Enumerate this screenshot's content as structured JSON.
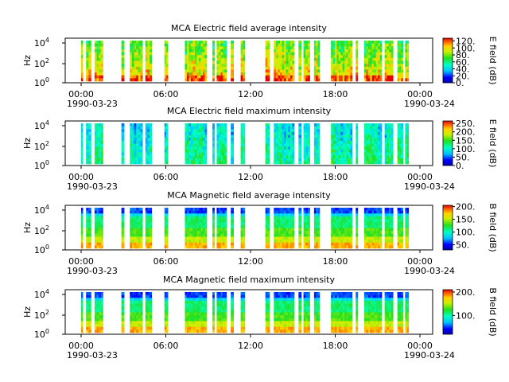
{
  "figure": {
    "x_tick_labels": [
      "00:00",
      "06:00",
      "12:00",
      "18:00",
      "00:00"
    ],
    "date_start": "1990-03-23",
    "date_end": "1990-03-24",
    "ylabel": "Hz"
  },
  "chart_data": [
    {
      "type": "heatmap",
      "title": "MCA  Electric field average intensity",
      "ylabel": "Hz",
      "y_ticks": [
        "10^0",
        "10^2",
        "10^4"
      ],
      "ylim_log10": [
        0,
        4.5
      ],
      "colorbar_label": "E field (dB)",
      "colorbar_ticks": [
        "0.",
        "20.",
        "40.",
        "60.",
        "80.",
        "100.",
        "120."
      ],
      "color_range": [
        0,
        128
      ],
      "background_level": 0.55,
      "data_profile": "avg_e"
    },
    {
      "type": "heatmap",
      "title": "MCA  Electric field maximum intensity",
      "ylabel": "Hz",
      "y_ticks": [
        "10^0",
        "10^2",
        "10^4"
      ],
      "ylim_log10": [
        0,
        4.5
      ],
      "colorbar_label": "E field (dB)",
      "colorbar_ticks": [
        "0.",
        "50.",
        "100.",
        "150.",
        "200.",
        "250."
      ],
      "color_range": [
        0,
        265
      ],
      "background_level": 0.5,
      "data_profile": "max_e"
    },
    {
      "type": "heatmap",
      "title": "MCA  Magnetic field average intensity",
      "ylabel": "Hz",
      "y_ticks": [
        "10^0",
        "10^2",
        "10^4"
      ],
      "ylim_log10": [
        0,
        4.5
      ],
      "colorbar_label": "B field (dB)",
      "colorbar_ticks": [
        "50.",
        "100.",
        "150.",
        "200."
      ],
      "color_range": [
        30,
        205
      ],
      "background_level": 0.45,
      "data_profile": "avg_b"
    },
    {
      "type": "heatmap",
      "title": "MCA  Magnetic field maximum intensity",
      "ylabel": "Hz",
      "y_ticks": [
        "10^0",
        "10^2",
        "10^4"
      ],
      "ylim_log10": [
        0,
        4.5
      ],
      "colorbar_label": "B field (dB)",
      "colorbar_ticks": [
        "100.",
        "200."
      ],
      "color_range": [
        20,
        210
      ],
      "background_level": 0.45,
      "data_profile": "max_b"
    }
  ],
  "time_axis": {
    "start": "1990-03-23 00:00",
    "end": "1990-03-24 00:00",
    "data_coverage_hours": [
      [
        0.0,
        0.12
      ],
      [
        0.35,
        0.7
      ],
      [
        0.95,
        1.55
      ],
      [
        2.85,
        3.05
      ],
      [
        3.45,
        4.35
      ],
      [
        4.55,
        5.0
      ],
      [
        5.9,
        6.15
      ],
      [
        7.35,
        8.9
      ],
      [
        9.3,
        9.45
      ],
      [
        9.6,
        10.3
      ],
      [
        10.6,
        10.8
      ],
      [
        11.3,
        11.6
      ],
      [
        13.05,
        13.35
      ],
      [
        13.65,
        15.1
      ],
      [
        15.4,
        15.6
      ],
      [
        15.75,
        16.2
      ],
      [
        16.5,
        16.9
      ],
      [
        17.7,
        19.2
      ],
      [
        19.45,
        19.6
      ],
      [
        20.05,
        21.3
      ],
      [
        21.5,
        22.1
      ],
      [
        22.4,
        22.8
      ],
      [
        22.95,
        23.2
      ]
    ]
  }
}
